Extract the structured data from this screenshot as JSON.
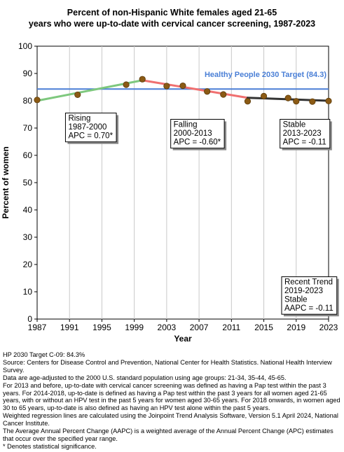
{
  "chart_data": {
    "type": "line",
    "title": [
      "Percent of non-Hispanic White females aged 21-65",
      "years who were up-to-date with cervical cancer screening, 1987-2023"
    ],
    "xlabel": "Year",
    "ylabel": "Percent of women",
    "xlim": [
      1987,
      2023
    ],
    "ylim": [
      0,
      100
    ],
    "x_ticks": [
      1987,
      1991,
      1995,
      1999,
      2003,
      2007,
      2011,
      2015,
      2019,
      2023
    ],
    "y_ticks": [
      0,
      10,
      20,
      30,
      40,
      50,
      60,
      70,
      80,
      90,
      100
    ],
    "grid": "vertical",
    "points": {
      "x": [
        1987,
        1992,
        1998,
        2000,
        2003,
        2005,
        2008,
        2010,
        2013,
        2015,
        2018,
        2019,
        2021,
        2023
      ],
      "y": [
        80.3,
        82.2,
        85.9,
        87.9,
        85.4,
        85.5,
        83.4,
        82.3,
        79.8,
        81.7,
        81.0,
        79.8,
        79.7,
        79.9
      ]
    },
    "trend_segments": [
      {
        "x": [
          1987,
          2000
        ],
        "y": [
          80.0,
          87.5
        ],
        "color": "#7ec87e"
      },
      {
        "x": [
          2000,
          2013
        ],
        "y": [
          87.5,
          81.1
        ],
        "color": "#f07070"
      },
      {
        "x": [
          2013,
          2023
        ],
        "y": [
          81.1,
          80.0
        ],
        "color": "#333333"
      }
    ],
    "target": {
      "value": 84.3,
      "label": "Healthy People 2030 Target (84.3)",
      "color": "#4a7fd6"
    },
    "annotations": [
      {
        "lines": [
          "Rising",
          "1987-2000",
          "APC =  0.70*"
        ],
        "x": 1990.5,
        "y": 75.5
      },
      {
        "lines": [
          "Falling",
          "2000-2013",
          "APC = -0.60*"
        ],
        "x": 2003.5,
        "y": 73.2
      },
      {
        "lines": [
          "Stable",
          "2013-2023",
          "APC = -0.11"
        ],
        "x": 2017,
        "y": 73.2
      },
      {
        "lines": [
          "Recent Trend",
          "2019-2023",
          "Stable",
          "AAPC = -0.11"
        ],
        "x": 2017.2,
        "y": 15.5
      }
    ],
    "marker_color": "#8b5a14"
  },
  "footnotes": [
    "HP 2030 Target C-09: 84.3%",
    "Source: Centers for Disease Control and Prevention, National Center for Health Statistics. National Health Interview Survey.",
    "Data are age-adjusted to the 2000 U.S. standard population using age groups: 21-34, 35-44, 45-65.",
    "For 2013 and before, up-to-date with cervical cancer screening was defined as having a Pap test within the past 3 years. For 2014-2018, up-to-date is defined as having a Pap test within the past 3 years for all women aged 21-65 years, with or without an HPV test in the past 5 years for women aged 30-65 years.  For 2018 onwards, in women aged 30 to 65 years, up-to-date is also defined as having an HPV test alone within the past 5 years.",
    "Weighted regression lines are calculated using the Joinpoint Trend Analysis Software, Version 5.1 April 2024, National Cancer Institute.",
    "The Average Annual Percent Change (AAPC) is a weighted average of the Annual Percent Change (APC) estimates that occur over the specified year range.",
    "* Denotes statistical significance."
  ]
}
